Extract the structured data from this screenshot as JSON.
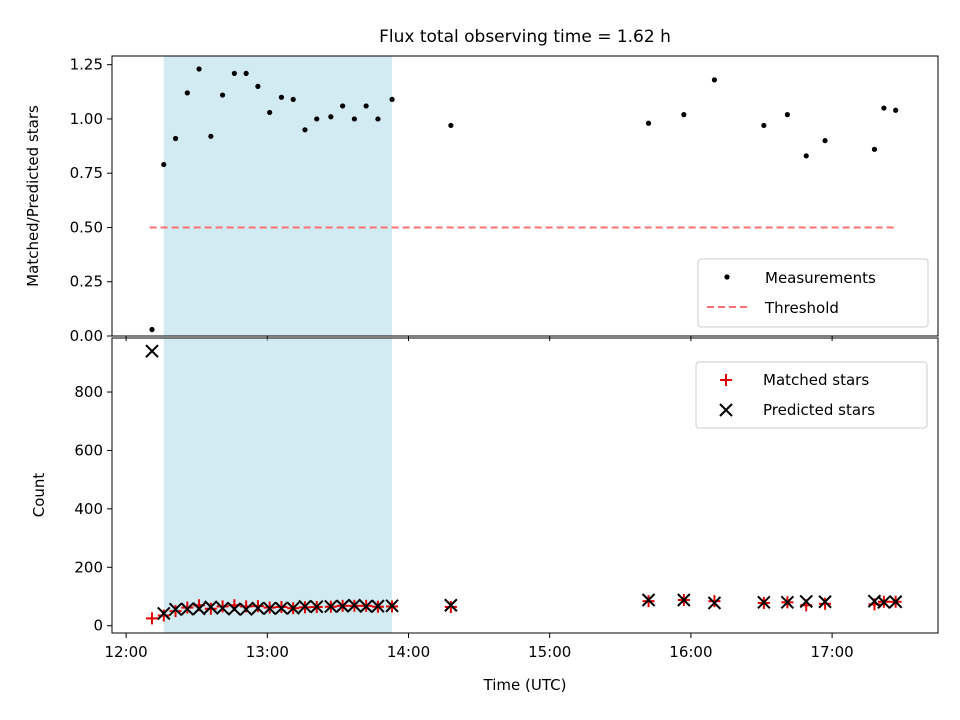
{
  "title": "Flux total observing time = 1.62 h",
  "colors": {
    "measurement": "#000000",
    "threshold": "#ff7070",
    "matched": "#e00000",
    "predicted": "#000000",
    "shade": "#add8e6"
  },
  "chart_data": [
    {
      "type": "scatter",
      "panel": "top",
      "title": "Flux total observing time = 1.62 h",
      "ylabel": "Matched/Predicted stars",
      "xlabel": "",
      "x_range": [
        "11:54",
        "17:45"
      ],
      "ylim": [
        0,
        1.29
      ],
      "y_ticks": [
        0.0,
        0.25,
        0.5,
        0.75,
        1.0,
        1.25
      ],
      "y_tick_labels": [
        "0.00",
        "0.25",
        "0.50",
        "0.75",
        "1.00",
        "1.25"
      ],
      "x_ticks": [
        "12:00",
        "13:00",
        "14:00",
        "15:00",
        "16:00",
        "17:00"
      ],
      "legend_position": "lower-right",
      "shaded_span": [
        "12:16",
        "13:53"
      ],
      "threshold": {
        "label": "Threshold",
        "value": 0.5,
        "x_range": [
          "12:10",
          "17:27"
        ]
      },
      "series": [
        {
          "name": "Measurements",
          "points": [
            [
              "12:11",
              0.03
            ],
            [
              "12:16",
              0.79
            ],
            [
              "12:21",
              0.91
            ],
            [
              "12:26",
              1.12
            ],
            [
              "12:31",
              1.23
            ],
            [
              "12:36",
              0.92
            ],
            [
              "12:41",
              1.11
            ],
            [
              "12:46",
              1.21
            ],
            [
              "12:51",
              1.21
            ],
            [
              "12:56",
              1.15
            ],
            [
              "13:01",
              1.03
            ],
            [
              "13:06",
              1.1
            ],
            [
              "13:11",
              1.09
            ],
            [
              "13:16",
              0.95
            ],
            [
              "13:21",
              1.0
            ],
            [
              "13:27",
              1.01
            ],
            [
              "13:32",
              1.06
            ],
            [
              "13:37",
              1.0
            ],
            [
              "13:42",
              1.06
            ],
            [
              "13:47",
              1.0
            ],
            [
              "13:53",
              1.09
            ],
            [
              "14:18",
              0.97
            ],
            [
              "15:42",
              0.98
            ],
            [
              "15:57",
              1.02
            ],
            [
              "16:10",
              1.18
            ],
            [
              "16:31",
              0.97
            ],
            [
              "16:41",
              1.02
            ],
            [
              "16:49",
              0.83
            ],
            [
              "16:57",
              0.9
            ],
            [
              "17:18",
              0.86
            ],
            [
              "17:22",
              1.05
            ],
            [
              "17:27",
              1.04
            ]
          ]
        }
      ]
    },
    {
      "type": "scatter",
      "panel": "bottom",
      "ylabel": "Count",
      "xlabel": "Time (UTC)",
      "x_range": [
        "11:54",
        "17:45"
      ],
      "ylim": [
        -25,
        985
      ],
      "y_ticks": [
        0,
        200,
        400,
        600,
        800
      ],
      "x_ticks": [
        "12:00",
        "13:00",
        "14:00",
        "15:00",
        "16:00",
        "17:00"
      ],
      "legend_position": "upper-right",
      "shaded_span": [
        "12:16",
        "13:53"
      ],
      "series": [
        {
          "name": "Matched stars",
          "marker": "plus",
          "points": [
            [
              "12:11",
              25
            ],
            [
              "12:16",
              35
            ],
            [
              "12:21",
              50
            ],
            [
              "12:26",
              62
            ],
            [
              "12:31",
              70
            ],
            [
              "12:36",
              58
            ],
            [
              "12:41",
              66
            ],
            [
              "12:46",
              70
            ],
            [
              "12:51",
              66
            ],
            [
              "12:56",
              67
            ],
            [
              "13:01",
              62
            ],
            [
              "13:06",
              64
            ],
            [
              "13:11",
              60
            ],
            [
              "13:16",
              63
            ],
            [
              "13:21",
              64
            ],
            [
              "13:27",
              65
            ],
            [
              "13:32",
              68
            ],
            [
              "13:37",
              68
            ],
            [
              "13:42",
              68
            ],
            [
              "13:47",
              65
            ],
            [
              "13:53",
              66
            ],
            [
              "14:18",
              64
            ],
            [
              "15:42",
              84
            ],
            [
              "15:57",
              88
            ],
            [
              "16:10",
              84
            ],
            [
              "16:31",
              78
            ],
            [
              "16:41",
              80
            ],
            [
              "16:49",
              70
            ],
            [
              "16:57",
              75
            ],
            [
              "17:18",
              73
            ],
            [
              "17:22",
              82
            ],
            [
              "17:27",
              82
            ]
          ]
        },
        {
          "name": "Predicted stars",
          "marker": "x",
          "points": [
            [
              "12:11",
              940
            ],
            [
              "12:16",
              42
            ],
            [
              "12:21",
              56
            ],
            [
              "12:26",
              57
            ],
            [
              "12:31",
              58
            ],
            [
              "12:36",
              64
            ],
            [
              "12:41",
              60
            ],
            [
              "12:46",
              57
            ],
            [
              "12:51",
              56
            ],
            [
              "12:56",
              60
            ],
            [
              "13:01",
              59
            ],
            [
              "13:06",
              60
            ],
            [
              "13:11",
              60
            ],
            [
              "13:16",
              66
            ],
            [
              "13:21",
              65
            ],
            [
              "13:27",
              66
            ],
            [
              "13:32",
              67
            ],
            [
              "13:37",
              70
            ],
            [
              "13:42",
              66
            ],
            [
              "13:47",
              67
            ],
            [
              "13:53",
              68
            ],
            [
              "14:18",
              70
            ],
            [
              "15:42",
              88
            ],
            [
              "15:57",
              88
            ],
            [
              "16:10",
              78
            ],
            [
              "16:31",
              80
            ],
            [
              "16:41",
              80
            ],
            [
              "16:49",
              83
            ],
            [
              "16:57",
              82
            ],
            [
              "17:18",
              84
            ],
            [
              "17:22",
              80
            ],
            [
              "17:27",
              82
            ]
          ]
        }
      ]
    }
  ]
}
